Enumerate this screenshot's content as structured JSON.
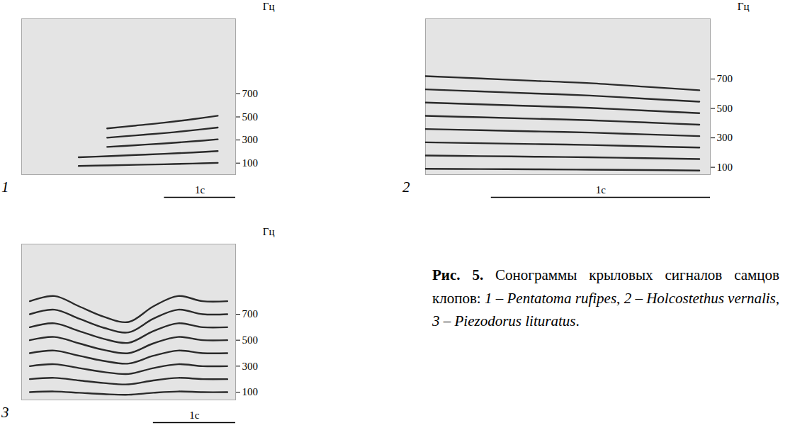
{
  "chart_data": [
    {
      "type": "line",
      "panel": "1",
      "color": "#2a2a2a",
      "y_label": "Гц",
      "xlim": [
        0,
        3
      ],
      "ylim": [
        0,
        1350
      ],
      "yticks": [
        100,
        300,
        500,
        700
      ],
      "tick_labels": "y",
      "scale_bar": {
        "value": 1,
        "label": "1с"
      },
      "x": [
        0.8,
        1.2,
        1.6,
        2.0,
        2.4,
        2.75
      ],
      "series": [
        {
          "values": [
            75,
            80,
            85,
            90,
            96,
            102
          ]
        },
        {
          "values": [
            150,
            160,
            170,
            180,
            192,
            204
          ]
        },
        {
          "values": [
            null,
            240,
            255,
            270,
            288,
            306
          ]
        },
        {
          "values": [
            null,
            320,
            340,
            360,
            384,
            408
          ]
        },
        {
          "values": [
            null,
            400,
            425,
            450,
            480,
            510
          ]
        }
      ]
    },
    {
      "type": "line",
      "panel": "2",
      "color": "#2a2a2a",
      "y_label": "Гц",
      "xlim": [
        0,
        1.3
      ],
      "ylim": [
        50,
        1110
      ],
      "yticks": [
        100,
        300,
        500,
        700
      ],
      "tick_labels": "y",
      "scale_bar": {
        "value": 1,
        "label": "1с"
      },
      "x": [
        0,
        0.25,
        0.5,
        0.75,
        1.0,
        1.25
      ],
      "series": [
        {
          "values": [
            90,
            88,
            86,
            84,
            81,
            78
          ]
        },
        {
          "values": [
            180,
            176,
            172,
            168,
            162,
            156
          ]
        },
        {
          "values": [
            270,
            264,
            258,
            252,
            243,
            234
          ]
        },
        {
          "values": [
            360,
            352,
            344,
            336,
            324,
            312
          ]
        },
        {
          "values": [
            450,
            440,
            430,
            420,
            405,
            390
          ]
        },
        {
          "values": [
            540,
            528,
            516,
            504,
            486,
            468
          ]
        },
        {
          "values": [
            630,
            616,
            602,
            588,
            567,
            546
          ]
        },
        {
          "values": [
            720,
            704,
            688,
            672,
            648,
            624
          ]
        }
      ]
    },
    {
      "type": "line",
      "panel": "3",
      "color": "#2a2a2a",
      "y_label": "Гц",
      "xlim": [
        0,
        2.6
      ],
      "ylim": [
        40,
        1240
      ],
      "yticks": [
        100,
        300,
        500,
        700
      ],
      "tick_labels": "y",
      "scale_bar": {
        "value": 1,
        "label": "1с"
      },
      "x": [
        0.1,
        0.4,
        0.7,
        1.0,
        1.3,
        1.6,
        1.9,
        2.2,
        2.5
      ],
      "series": [
        {
          "values": [
            100,
            105,
            95,
            85,
            80,
            95,
            105,
            100,
            100
          ]
        },
        {
          "values": [
            200,
            210,
            190,
            170,
            160,
            190,
            210,
            200,
            200
          ]
        },
        {
          "values": [
            300,
            315,
            285,
            255,
            240,
            285,
            315,
            300,
            300
          ]
        },
        {
          "values": [
            400,
            420,
            380,
            340,
            320,
            380,
            420,
            400,
            400
          ]
        },
        {
          "values": [
            500,
            525,
            475,
            425,
            400,
            475,
            525,
            500,
            500
          ]
        },
        {
          "values": [
            600,
            630,
            570,
            510,
            480,
            570,
            630,
            600,
            600
          ]
        },
        {
          "values": [
            700,
            735,
            665,
            595,
            560,
            665,
            735,
            700,
            700
          ]
        },
        {
          "values": [
            800,
            840,
            760,
            680,
            640,
            760,
            840,
            800,
            800
          ]
        }
      ]
    }
  ],
  "caption": {
    "label": "Рис. 5.",
    "text": "Сонограммы крыловых сигналов самцов клопов:",
    "items": [
      {
        "number": "1",
        "separator": " – ",
        "species": "Pentatoma rufipes",
        "end": ","
      },
      {
        "number": "2",
        "separator": " – ",
        "species": "Holcostethus vernalis",
        "end": ","
      },
      {
        "number": "3",
        "separator": " – ",
        "species": "Piezodorus lituratus",
        "end": "."
      }
    ]
  }
}
